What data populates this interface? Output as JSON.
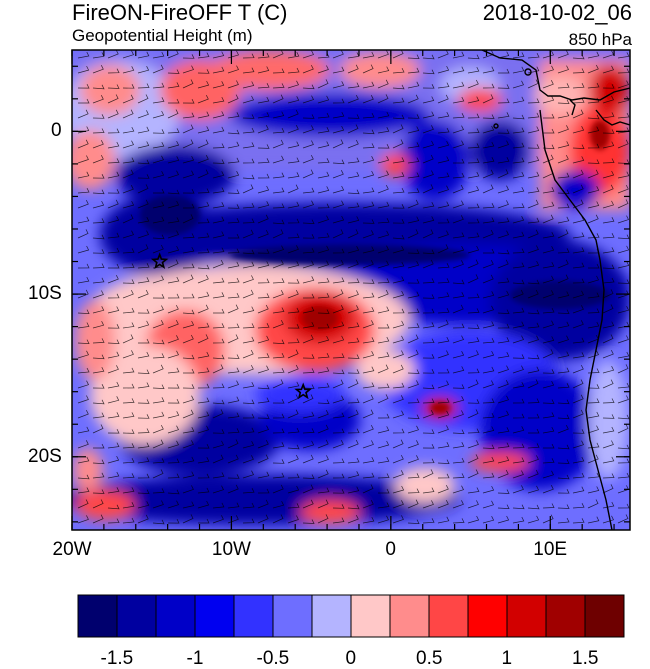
{
  "header": {
    "title_left": "FireON-FireOFF T (C)",
    "subtitle_left": "Geopotential Height (m)",
    "title_right": "2018-10-02_06",
    "subtitle_right": "850 hPa"
  },
  "map": {
    "lon_range": [
      -20,
      15
    ],
    "lat_range": [
      -24.5,
      5
    ],
    "lon_ticks": [
      {
        "value": -20,
        "label": "20W"
      },
      {
        "value": -10,
        "label": "10W"
      },
      {
        "value": 0,
        "label": "0"
      },
      {
        "value": 10,
        "label": "10E"
      }
    ],
    "lat_ticks": [
      {
        "value": 0,
        "label": "0"
      },
      {
        "value": -10,
        "label": "10S"
      },
      {
        "value": -20,
        "label": "20S"
      }
    ],
    "markers": [
      {
        "type": "star",
        "lon": -14.5,
        "lat": -8.0
      },
      {
        "type": "star",
        "lon": -5.5,
        "lat": -16.0
      }
    ]
  },
  "colorbar": {
    "colors": [
      "#00006e",
      "#0000a0",
      "#0000c8",
      "#0000f0",
      "#3232ff",
      "#6e6eff",
      "#b4b4ff",
      "#ffc8c8",
      "#ff8c8c",
      "#ff4646",
      "#ff0000",
      "#d20000",
      "#a00000",
      "#6e0000"
    ],
    "labels": [
      {
        "index": 1,
        "text": "-1.5"
      },
      {
        "index": 3,
        "text": "-1"
      },
      {
        "index": 5,
        "text": "-0.5"
      },
      {
        "index": 7,
        "text": "0"
      },
      {
        "index": 9,
        "text": "0.5"
      },
      {
        "index": 11,
        "text": "1"
      },
      {
        "index": 13,
        "text": "1.5"
      }
    ]
  }
}
